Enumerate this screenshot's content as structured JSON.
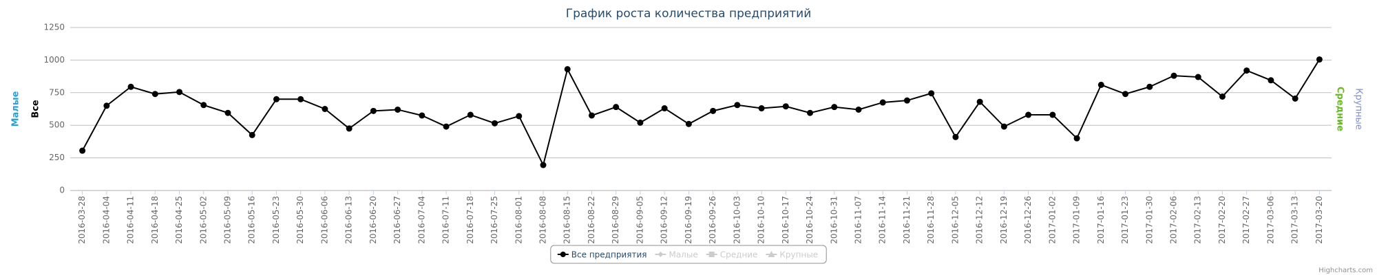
{
  "chart_data": {
    "type": "line",
    "title": "График роста количества предприятий",
    "categories": [
      "2016-03-28",
      "2016-04-04",
      "2016-04-11",
      "2016-04-18",
      "2016-04-25",
      "2016-05-02",
      "2016-05-09",
      "2016-05-16",
      "2016-05-23",
      "2016-05-30",
      "2016-06-06",
      "2016-06-13",
      "2016-06-20",
      "2016-06-27",
      "2016-07-04",
      "2016-07-11",
      "2016-07-18",
      "2016-07-25",
      "2016-08-01",
      "2016-08-08",
      "2016-08-15",
      "2016-08-22",
      "2016-08-29",
      "2016-09-05",
      "2016-09-12",
      "2016-09-19",
      "2016-09-26",
      "2016-10-03",
      "2016-10-10",
      "2016-10-17",
      "2016-10-24",
      "2016-10-31",
      "2016-11-07",
      "2016-11-14",
      "2016-11-21",
      "2016-11-28",
      "2016-12-05",
      "2016-12-12",
      "2016-12-19",
      "2016-12-26",
      "2017-01-02",
      "2017-01-09",
      "2017-01-16",
      "2017-01-23",
      "2017-01-30",
      "2017-02-06",
      "2017-02-13",
      "2017-02-20",
      "2017-02-27",
      "2017-03-06",
      "2017-03-13",
      "2017-03-20"
    ],
    "series": [
      {
        "name": "Все предприятия",
        "color": "#000000",
        "visible": true,
        "values": [
          305,
          650,
          795,
          740,
          755,
          655,
          595,
          425,
          700,
          700,
          625,
          475,
          610,
          620,
          575,
          490,
          580,
          515,
          570,
          195,
          930,
          575,
          640,
          520,
          630,
          510,
          610,
          655,
          630,
          645,
          595,
          640,
          620,
          675,
          690,
          745,
          410,
          680,
          490,
          580,
          580,
          400,
          810,
          740,
          795,
          880,
          870,
          720,
          920,
          845,
          705,
          1005
        ]
      },
      {
        "name": "Малые",
        "color": "#2b9fd6",
        "visible": false
      },
      {
        "name": "Средние",
        "color": "#66bb22",
        "visible": false
      },
      {
        "name": "Крупные",
        "color": "#8090d0",
        "visible": false
      }
    ],
    "yaxis_label": "Все",
    "ylim": [
      0,
      1250
    ],
    "yticks": [
      0,
      250,
      500,
      750,
      1000,
      1250
    ],
    "grid": true,
    "legend": "bottom",
    "credits": "Highcharts.com"
  }
}
